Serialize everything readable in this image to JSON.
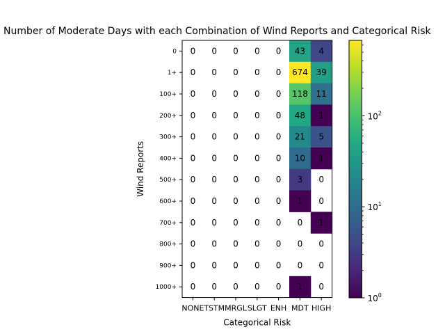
{
  "chart_data": {
    "type": "heatmap",
    "title": "Number of Moderate Days with each Combination of Wind Reports and Categorical Risk",
    "xlabel": "Categorical Risk",
    "ylabel": "Wind Reports",
    "x_categories": [
      "NONE",
      "TSTM",
      "MRGL",
      "SLGT",
      "ENH",
      "MDT",
      "HIGH"
    ],
    "y_categories": [
      "0",
      "1+",
      "100+",
      "200+",
      "300+",
      "400+",
      "500+",
      "600+",
      "700+",
      "800+",
      "900+",
      "1000+"
    ],
    "values": [
      [
        0,
        0,
        0,
        0,
        0,
        43,
        4
      ],
      [
        0,
        0,
        0,
        0,
        0,
        674,
        39
      ],
      [
        0,
        0,
        0,
        0,
        0,
        118,
        11
      ],
      [
        0,
        0,
        0,
        0,
        0,
        48,
        1
      ],
      [
        0,
        0,
        0,
        0,
        0,
        21,
        5
      ],
      [
        0,
        0,
        0,
        0,
        0,
        10,
        1
      ],
      [
        0,
        0,
        0,
        0,
        0,
        3,
        0
      ],
      [
        0,
        0,
        0,
        0,
        0,
        1,
        0
      ],
      [
        0,
        0,
        0,
        0,
        0,
        0,
        1
      ],
      [
        0,
        0,
        0,
        0,
        0,
        0,
        0
      ],
      [
        0,
        0,
        0,
        0,
        0,
        0,
        0
      ],
      [
        0,
        0,
        0,
        0,
        0,
        1,
        0
      ]
    ],
    "color_scale": "log",
    "colormap": "viridis",
    "colorbar": {
      "range": [
        1,
        674
      ],
      "ticks": [
        {
          "value": 1,
          "base": "10",
          "exp": "0"
        },
        {
          "value": 10,
          "base": "10",
          "exp": "1"
        },
        {
          "value": 100,
          "base": "10",
          "exp": "2"
        }
      ]
    },
    "grid": false
  }
}
